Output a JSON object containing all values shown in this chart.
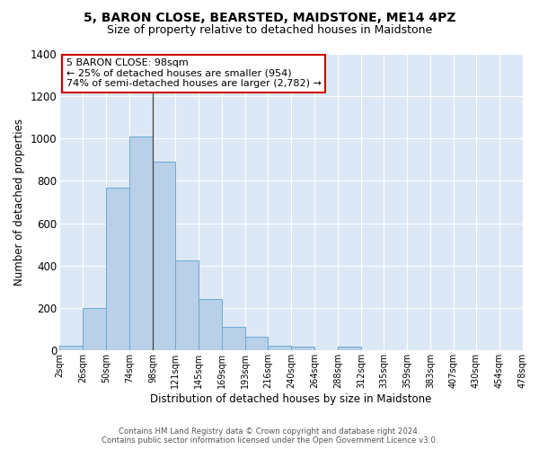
{
  "title": "5, BARON CLOSE, BEARSTED, MAIDSTONE, ME14 4PZ",
  "subtitle": "Size of property relative to detached houses in Maidstone",
  "xlabel": "Distribution of detached houses by size in Maidstone",
  "ylabel": "Number of detached properties",
  "bin_labels": [
    "2sqm",
    "26sqm",
    "50sqm",
    "74sqm",
    "98sqm",
    "121sqm",
    "145sqm",
    "169sqm",
    "193sqm",
    "216sqm",
    "240sqm",
    "264sqm",
    "288sqm",
    "312sqm",
    "335sqm",
    "359sqm",
    "383sqm",
    "407sqm",
    "430sqm",
    "454sqm",
    "478sqm"
  ],
  "bar_values": [
    20,
    200,
    770,
    1010,
    890,
    425,
    240,
    110,
    65,
    20,
    18,
    0,
    15,
    0,
    0,
    0,
    0,
    0,
    0,
    0
  ],
  "bar_color": "#b8d0e8",
  "bar_edge_color": "#6aaad4",
  "ylim": [
    0,
    1400
  ],
  "yticks": [
    0,
    200,
    400,
    600,
    800,
    1000,
    1200,
    1400
  ],
  "annotation_title": "5 BARON CLOSE: 98sqm",
  "annotation_line1": "← 25% of detached houses are smaller (954)",
  "annotation_line2": "74% of semi-detached houses are larger (2,782) →",
  "annotation_box_color": "#ffffff",
  "annotation_box_edge": "#cc0000",
  "background_color": "#dce8f5",
  "footer_line1": "Contains HM Land Registry data © Crown copyright and database right 2024.",
  "footer_line2": "Contains public sector information licensed under the Open Government Licence v3.0.",
  "title_fontsize": 10,
  "subtitle_fontsize": 9
}
